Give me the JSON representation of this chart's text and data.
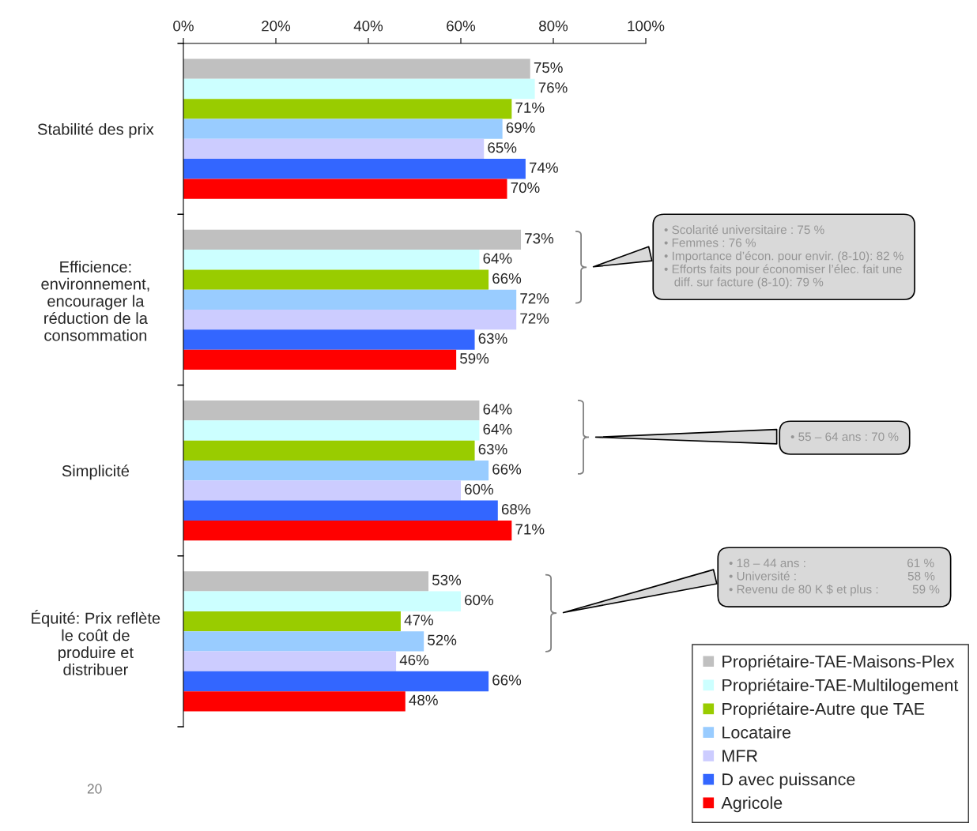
{
  "chart_data": {
    "type": "bar",
    "orientation": "horizontal",
    "grid": false,
    "legend": "bottom right",
    "categories": [
      "Stabilité des prix",
      "Efficience:\nenvironnement,\nencourager la\nréduction de la\nconsommation",
      "Simplicité",
      "Équité: Prix reflète\nle coût de\nproduire et\ndistribuer"
    ],
    "xlim": [
      0,
      100
    ],
    "xticks": [
      {
        "value": 0,
        "label": "0%"
      },
      {
        "value": 20,
        "label": "20%"
      },
      {
        "value": 40,
        "label": "40%"
      },
      {
        "value": 60,
        "label": "60%"
      },
      {
        "value": 80,
        "label": "80%"
      },
      {
        "value": 100,
        "label": "100%"
      }
    ],
    "series": [
      {
        "name": "Propriétaire-TAE-Maisons-Plex",
        "color": "#c0c0c0",
        "values": [
          75,
          73,
          64,
          53
        ],
        "value_labels": [
          "75%",
          "73%",
          "64%",
          "53%"
        ]
      },
      {
        "name": "Propriétaire-TAE-Multilogement",
        "color": "#ccffff",
        "values": [
          76,
          64,
          64,
          60
        ],
        "value_labels": [
          "76%",
          "64%",
          "64%",
          "60%"
        ]
      },
      {
        "name": "Propriétaire-Autre que TAE",
        "color": "#99cc00",
        "values": [
          71,
          66,
          63,
          47
        ],
        "value_labels": [
          "71%",
          "66%",
          "63%",
          "47%"
        ]
      },
      {
        "name": "Locataire",
        "color": "#99ccff",
        "values": [
          69,
          72,
          66,
          52
        ],
        "value_labels": [
          "69%",
          "72%",
          "66%",
          "52%"
        ]
      },
      {
        "name": "MFR",
        "color": "#ccccff",
        "values": [
          65,
          72,
          60,
          46
        ],
        "value_labels": [
          "65%",
          "72%",
          "60%",
          "46%"
        ]
      },
      {
        "name": "D avec puissance",
        "color": "#3366ff",
        "values": [
          74,
          63,
          68,
          66
        ],
        "value_labels": [
          "74%",
          "63%",
          "68%",
          "66%"
        ]
      },
      {
        "name": "Agricole",
        "color": "#ff0000",
        "values": [
          70,
          59,
          71,
          48
        ],
        "value_labels": [
          "70%",
          "59%",
          "71%",
          "48%"
        ]
      }
    ],
    "annotations": [
      "• Scolarité universitaire : 75 %\n• Femmes : 76 %\n• Importance d’écon. pour envir. (8-10): 82 %\n• Efforts faits pour économiser l’élec. fait une\n   diff. sur facture (8-10): 79 %",
      "• 55 – 64 ans : 70 %",
      "• 18 – 44 ans :                              61 %\n• Université :                                 58 %\n• Revenu de 80 K $ et plus :          59 %",
      "20"
    ]
  }
}
